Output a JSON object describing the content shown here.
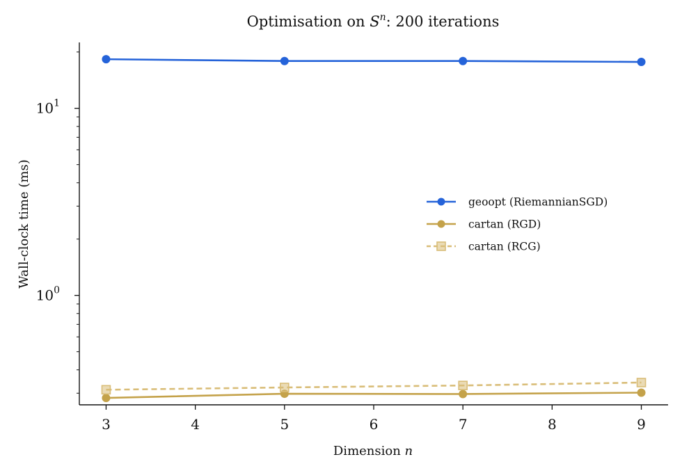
{
  "chart_data": {
    "type": "line",
    "title": {
      "prefix": "Optimisation on ",
      "symbol": "S",
      "superscript": "n",
      "suffix": ": 200 iterations"
    },
    "xlabel": {
      "text": "Dimension ",
      "var": "n"
    },
    "ylabel": "Wall-clock time (ms)",
    "x": [
      3,
      5,
      7,
      9
    ],
    "xlim": [
      2.7,
      9.3
    ],
    "xticks": [
      "3",
      "4",
      "5",
      "6",
      "7",
      "8",
      "9"
    ],
    "y_scale": "log",
    "ylim": [
      0.26,
      22.5
    ],
    "yticks": [
      {
        "value": 1,
        "base": "10",
        "exp": "0"
      },
      {
        "value": 10,
        "base": "10",
        "exp": "1"
      }
    ],
    "grid": false,
    "legend_placement": "center-right",
    "series": [
      {
        "name": "geoopt (RiemannianSGD)",
        "values": [
          18.3,
          17.9,
          17.9,
          17.7
        ],
        "color": "#2563d9",
        "marker": "circle",
        "dash": "solid"
      },
      {
        "name": "cartan (RGD)",
        "values": [
          0.283,
          0.298,
          0.297,
          0.302
        ],
        "color": "#c4a24a",
        "marker": "circle",
        "dash": "solid"
      },
      {
        "name": "cartan (RCG)",
        "values": [
          0.313,
          0.322,
          0.33,
          0.342
        ],
        "color": "#d9bd78",
        "marker": "square",
        "dash": "dashed"
      }
    ]
  }
}
